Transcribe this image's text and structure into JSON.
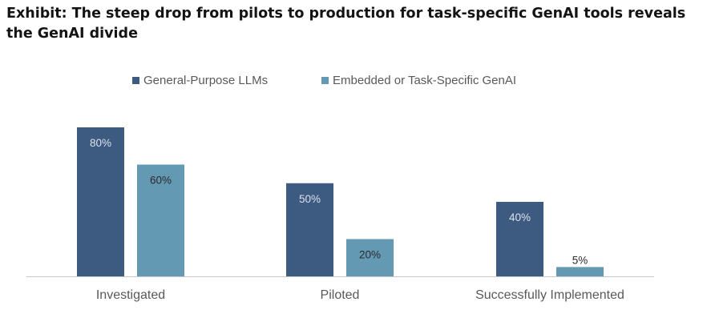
{
  "title": "Exhibit: The steep drop from pilots to production for task-specific GenAI tools reveals the GenAI divide",
  "colors": {
    "series_0": "#3d5a80",
    "series_1": "#6399b3",
    "axis": "#c8c8c8",
    "category_label": "#595959"
  },
  "chart_data": {
    "type": "bar",
    "categories": [
      "Investigated",
      "Piloted",
      "Successfully Implemented"
    ],
    "series": [
      {
        "name": "General-Purpose LLMs",
        "values": [
          80,
          50,
          40
        ],
        "labels": [
          "80%",
          "50%",
          "40%"
        ]
      },
      {
        "name": "Embedded or Task-Specific GenAI",
        "values": [
          60,
          20,
          5
        ],
        "labels": [
          "60%",
          "20%",
          "5%"
        ]
      }
    ],
    "ylim": [
      0,
      80
    ],
    "grid": false,
    "legend_position": "top"
  }
}
